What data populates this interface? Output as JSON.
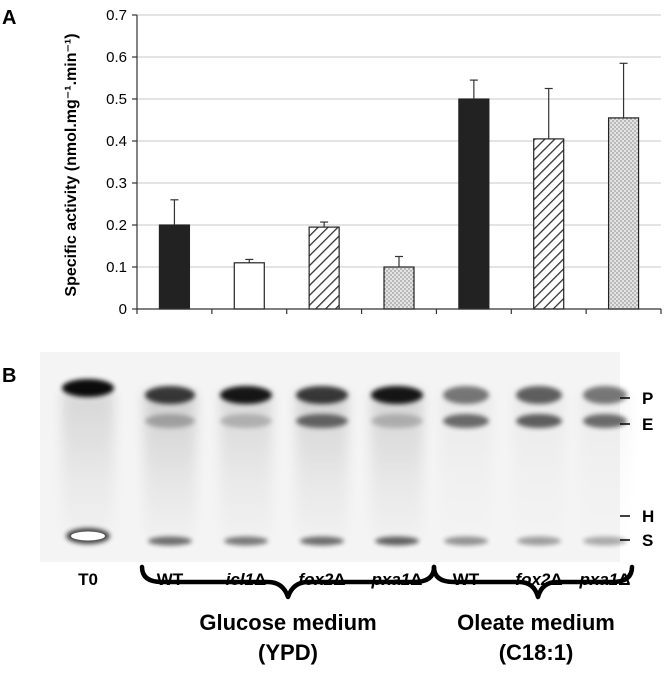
{
  "panels": {
    "a_letter": "A",
    "b_letter": "B"
  },
  "chart_data": {
    "type": "bar",
    "ylabel": "Specific activity (nmol.mg⁻¹.min⁻¹)",
    "ylim": [
      0,
      0.7
    ],
    "yticks": [
      "0",
      "0.1",
      "0.2",
      "0.3",
      "0.4",
      "0.5",
      "0.6",
      "0.7"
    ],
    "grid": true,
    "bars": [
      {
        "value": 0.2,
        "error": 0.06,
        "pattern": "solid"
      },
      {
        "value": 0.11,
        "error": 0.008,
        "pattern": "white"
      },
      {
        "value": 0.195,
        "error": 0.012,
        "pattern": "hatch"
      },
      {
        "value": 0.1,
        "error": 0.025,
        "pattern": "dots"
      },
      {
        "value": 0.5,
        "error": 0.045,
        "pattern": "solid"
      },
      {
        "value": 0.405,
        "error": 0.12,
        "pattern": "hatch"
      },
      {
        "value": 0.455,
        "error": 0.13,
        "pattern": "dots"
      }
    ],
    "colors": {
      "solid": "#222222",
      "white": "#ffffff",
      "hatch_line": "#333333",
      "dots": "#cfcfcf",
      "grid": "#c8c8c8"
    }
  },
  "gel": {
    "lanes": [
      {
        "label": "T0",
        "italic_prefix": "",
        "suffix": ""
      },
      {
        "label": "",
        "italic_prefix": "",
        "suffix": "WT"
      },
      {
        "label": "",
        "italic_prefix": "icl1",
        "suffix": "Δ"
      },
      {
        "label": "",
        "italic_prefix": "fox2",
        "suffix": "Δ"
      },
      {
        "label": "",
        "italic_prefix": "pxa1",
        "suffix": "Δ"
      },
      {
        "label": "",
        "italic_prefix": "",
        "suffix": "WT"
      },
      {
        "label": "",
        "italic_prefix": "fox2",
        "suffix": "Δ"
      },
      {
        "label": "",
        "italic_prefix": "pxa1",
        "suffix": "Δ"
      }
    ],
    "bands": [
      "P",
      "E",
      "H",
      "S"
    ],
    "groups": [
      {
        "line1": "Glucose medium",
        "line2": "(YPD)"
      },
      {
        "line1": "Oleate medium",
        "line2": "(C18:1)"
      }
    ]
  }
}
